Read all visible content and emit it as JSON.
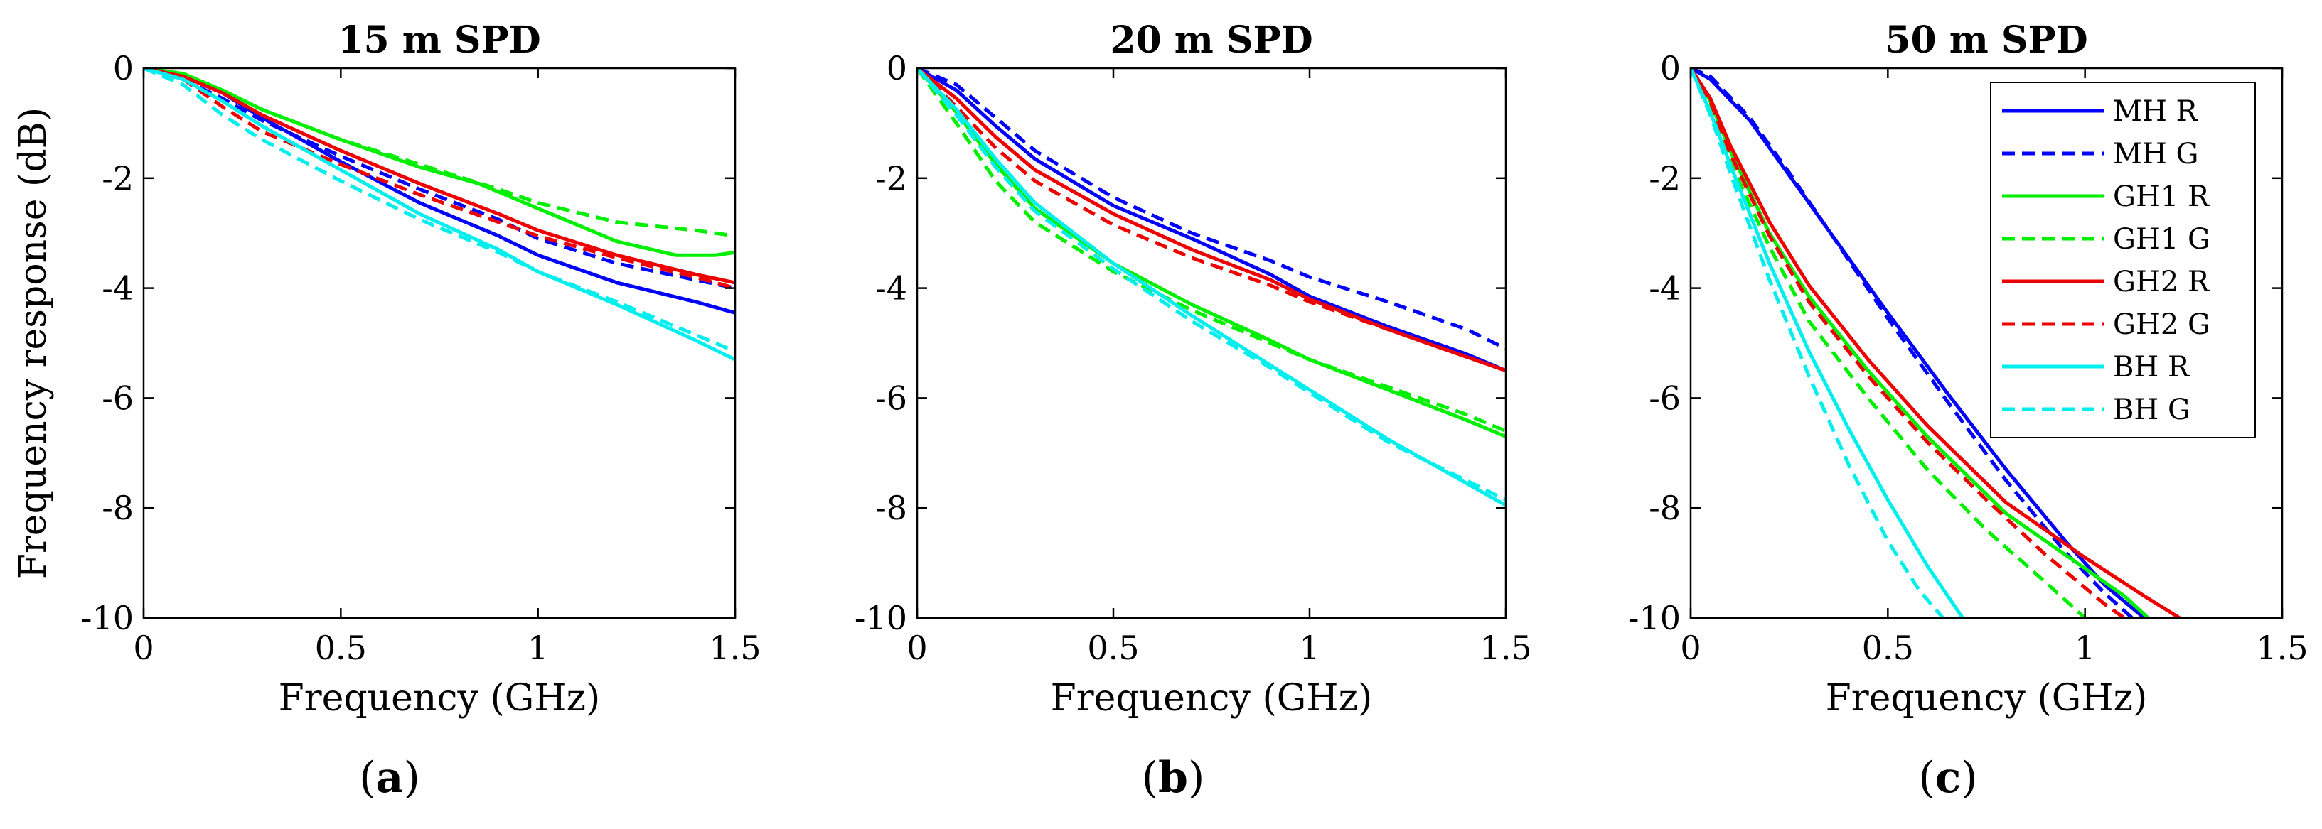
{
  "chart_data": [
    {
      "type": "line",
      "panel": "(a)",
      "panel_letter": "a",
      "title": "15 m SPD",
      "xlabel": "Frequency (GHz)",
      "ylabel": "Frequency response (dB)",
      "xlim": [
        0,
        1.5
      ],
      "ylim": [
        -10,
        0
      ],
      "xticks": [
        0,
        0.5,
        1,
        1.5
      ],
      "xtick_labels": [
        "0",
        "0.5",
        "1",
        "1.5"
      ],
      "yticks": [
        0,
        -2,
        -4,
        -6,
        -8,
        -10
      ],
      "ytick_labels": [
        "0",
        "-2",
        "-4",
        "-6",
        "-8",
        "-10"
      ],
      "series": [
        {
          "name": "MH R",
          "color": "#0000ff",
          "dash": "solid",
          "x": [
            0,
            0.1,
            0.2,
            0.3,
            0.5,
            0.7,
            0.9,
            1.0,
            1.2,
            1.4,
            1.5
          ],
          "y": [
            0,
            -0.15,
            -0.45,
            -0.9,
            -1.7,
            -2.45,
            -3.05,
            -3.4,
            -3.9,
            -4.25,
            -4.45
          ]
        },
        {
          "name": "MH G",
          "color": "#0000ff",
          "dash": "dashed",
          "x": [
            0,
            0.1,
            0.2,
            0.3,
            0.5,
            0.7,
            0.9,
            1.0,
            1.2,
            1.4,
            1.5
          ],
          "y": [
            0,
            -0.2,
            -0.55,
            -0.95,
            -1.6,
            -2.2,
            -2.75,
            -3.1,
            -3.55,
            -3.85,
            -4.0
          ]
        },
        {
          "name": "GH1 R",
          "color": "#00ee00",
          "dash": "solid",
          "x": [
            0,
            0.1,
            0.2,
            0.3,
            0.5,
            0.7,
            0.85,
            1.0,
            1.2,
            1.35,
            1.45,
            1.5
          ],
          "y": [
            0,
            -0.1,
            -0.4,
            -0.75,
            -1.3,
            -1.8,
            -2.1,
            -2.55,
            -3.15,
            -3.4,
            -3.4,
            -3.35
          ]
        },
        {
          "name": "GH1 G",
          "color": "#00ee00",
          "dash": "dashed",
          "x": [
            0,
            0.1,
            0.2,
            0.3,
            0.5,
            0.7,
            0.9,
            1.0,
            1.2,
            1.4,
            1.5
          ],
          "y": [
            0,
            -0.1,
            -0.4,
            -0.75,
            -1.3,
            -1.75,
            -2.2,
            -2.45,
            -2.8,
            -2.95,
            -3.05
          ]
        },
        {
          "name": "GH2 R",
          "color": "#ee0000",
          "dash": "solid",
          "x": [
            0,
            0.1,
            0.2,
            0.3,
            0.5,
            0.7,
            0.9,
            1.0,
            1.2,
            1.4,
            1.5
          ],
          "y": [
            0,
            -0.15,
            -0.45,
            -0.85,
            -1.5,
            -2.1,
            -2.65,
            -2.95,
            -3.4,
            -3.75,
            -3.9
          ]
        },
        {
          "name": "GH2 G",
          "color": "#ee0000",
          "dash": "dashed",
          "x": [
            0,
            0.1,
            0.2,
            0.3,
            0.5,
            0.7,
            0.9,
            1.0,
            1.2,
            1.4,
            1.5
          ],
          "y": [
            0,
            -0.2,
            -0.7,
            -1.15,
            -1.75,
            -2.3,
            -2.8,
            -3.05,
            -3.45,
            -3.8,
            -4.0
          ]
        },
        {
          "name": "BH R",
          "color": "#00eeee",
          "dash": "solid",
          "x": [
            0,
            0.1,
            0.2,
            0.3,
            0.5,
            0.7,
            0.9,
            1.0,
            1.2,
            1.4,
            1.5
          ],
          "y": [
            0,
            -0.2,
            -0.6,
            -1.05,
            -1.85,
            -2.65,
            -3.3,
            -3.7,
            -4.3,
            -4.95,
            -5.3
          ]
        },
        {
          "name": "BH G",
          "color": "#00eeee",
          "dash": "dashed",
          "x": [
            0,
            0.1,
            0.2,
            0.3,
            0.5,
            0.7,
            0.9,
            1.0,
            1.2,
            1.4,
            1.5
          ],
          "y": [
            0,
            -0.3,
            -0.85,
            -1.3,
            -2.05,
            -2.75,
            -3.35,
            -3.7,
            -4.25,
            -4.85,
            -5.15
          ]
        }
      ]
    },
    {
      "type": "line",
      "panel": "(b)",
      "panel_letter": "b",
      "title": "20 m SPD",
      "xlabel": "Frequency (GHz)",
      "ylabel": "",
      "xlim": [
        0,
        1.5
      ],
      "ylim": [
        -10,
        0
      ],
      "xticks": [
        0,
        0.5,
        1,
        1.5
      ],
      "xtick_labels": [
        "0",
        "0.5",
        "1",
        "1.5"
      ],
      "yticks": [
        0,
        -2,
        -4,
        -6,
        -8,
        -10
      ],
      "ytick_labels": [
        "0",
        "-2",
        "-4",
        "-6",
        "-8",
        "-10"
      ],
      "series": [
        {
          "name": "MH R",
          "color": "#0000ff",
          "dash": "solid",
          "x": [
            0,
            0.1,
            0.2,
            0.3,
            0.5,
            0.7,
            0.9,
            1.0,
            1.2,
            1.4,
            1.5
          ],
          "y": [
            0,
            -0.4,
            -1.05,
            -1.65,
            -2.5,
            -3.1,
            -3.75,
            -4.15,
            -4.7,
            -5.2,
            -5.5
          ]
        },
        {
          "name": "MH G",
          "color": "#0000ff",
          "dash": "dashed",
          "x": [
            0,
            0.1,
            0.2,
            0.3,
            0.5,
            0.7,
            0.9,
            1.0,
            1.2,
            1.4,
            1.5
          ],
          "y": [
            0,
            -0.3,
            -0.9,
            -1.5,
            -2.35,
            -3.0,
            -3.5,
            -3.8,
            -4.25,
            -4.75,
            -5.1
          ]
        },
        {
          "name": "GH1 R",
          "color": "#00ee00",
          "dash": "solid",
          "x": [
            0,
            0.1,
            0.2,
            0.3,
            0.5,
            0.7,
            0.9,
            1.0,
            1.2,
            1.4,
            1.5
          ],
          "y": [
            0,
            -0.8,
            -1.75,
            -2.55,
            -3.55,
            -4.3,
            -4.95,
            -5.3,
            -5.85,
            -6.4,
            -6.7
          ]
        },
        {
          "name": "GH1 G",
          "color": "#00ee00",
          "dash": "dashed",
          "x": [
            0,
            0.1,
            0.2,
            0.3,
            0.5,
            0.7,
            0.9,
            1.0,
            1.2,
            1.4,
            1.5
          ],
          "y": [
            0,
            -1.0,
            -2.05,
            -2.8,
            -3.7,
            -4.4,
            -5.0,
            -5.3,
            -5.8,
            -6.3,
            -6.6
          ]
        },
        {
          "name": "GH2 R",
          "color": "#ee0000",
          "dash": "solid",
          "x": [
            0,
            0.1,
            0.2,
            0.3,
            0.5,
            0.7,
            0.9,
            1.0,
            1.2,
            1.4,
            1.5
          ],
          "y": [
            0,
            -0.55,
            -1.25,
            -1.85,
            -2.65,
            -3.3,
            -3.85,
            -4.2,
            -4.75,
            -5.25,
            -5.5
          ]
        },
        {
          "name": "GH2 G",
          "color": "#ee0000",
          "dash": "dashed",
          "x": [
            0,
            0.1,
            0.2,
            0.3,
            0.5,
            0.7,
            0.9,
            1.0,
            1.2,
            1.4,
            1.5
          ],
          "y": [
            0,
            -0.7,
            -1.45,
            -2.05,
            -2.85,
            -3.45,
            -3.95,
            -4.25,
            -4.75,
            -5.25,
            -5.5
          ]
        },
        {
          "name": "BH R",
          "color": "#00eeee",
          "dash": "solid",
          "x": [
            0,
            0.1,
            0.2,
            0.3,
            0.5,
            0.7,
            0.9,
            1.0,
            1.2,
            1.4,
            1.5
          ],
          "y": [
            0,
            -0.75,
            -1.65,
            -2.45,
            -3.55,
            -4.5,
            -5.4,
            -5.85,
            -6.75,
            -7.55,
            -7.95
          ]
        },
        {
          "name": "BH G",
          "color": "#00eeee",
          "dash": "dashed",
          "x": [
            0,
            0.1,
            0.2,
            0.3,
            0.5,
            0.7,
            0.9,
            1.0,
            1.2,
            1.4,
            1.5
          ],
          "y": [
            0,
            -0.85,
            -1.8,
            -2.6,
            -3.65,
            -4.6,
            -5.45,
            -5.9,
            -6.8,
            -7.5,
            -7.85
          ]
        }
      ]
    },
    {
      "type": "line",
      "panel": "(c)",
      "panel_letter": "c",
      "title": "50 m SPD",
      "xlabel": "Frequency (GHz)",
      "ylabel": "",
      "xlim": [
        0,
        1.5
      ],
      "ylim": [
        -10,
        0
      ],
      "xticks": [
        0,
        0.5,
        1,
        1.5
      ],
      "xtick_labels": [
        "0",
        "0.5",
        "1",
        "1.5"
      ],
      "yticks": [
        0,
        -2,
        -4,
        -6,
        -8,
        -10
      ],
      "ytick_labels": [
        "0",
        "-2",
        "-4",
        "-6",
        "-8",
        "-10"
      ],
      "legend": {
        "placement": "top-right"
      },
      "series": [
        {
          "name": "MH R",
          "color": "#0000ff",
          "dash": "solid",
          "x": [
            0,
            0.05,
            0.15,
            0.25,
            0.35,
            0.5,
            0.65,
            0.8,
            0.95,
            1.05,
            1.15
          ],
          "y": [
            0,
            -0.2,
            -0.95,
            -1.95,
            -2.95,
            -4.45,
            -5.9,
            -7.3,
            -8.6,
            -9.4,
            -10
          ]
        },
        {
          "name": "MH G",
          "color": "#0000ff",
          "dash": "dashed",
          "x": [
            0,
            0.05,
            0.15,
            0.25,
            0.35,
            0.5,
            0.65,
            0.8,
            0.95,
            1.05,
            1.12
          ],
          "y": [
            0,
            -0.15,
            -0.9,
            -1.9,
            -2.95,
            -4.55,
            -6.05,
            -7.5,
            -8.8,
            -9.55,
            -10
          ]
        },
        {
          "name": "GH1 R",
          "color": "#00ee00",
          "dash": "solid",
          "x": [
            0,
            0.05,
            0.1,
            0.2,
            0.3,
            0.45,
            0.6,
            0.8,
            1.0,
            1.1,
            1.16
          ],
          "y": [
            0,
            -0.6,
            -1.5,
            -3.0,
            -4.15,
            -5.5,
            -6.7,
            -8.1,
            -9.1,
            -9.6,
            -10
          ]
        },
        {
          "name": "GH1 G",
          "color": "#00ee00",
          "dash": "dashed",
          "x": [
            0,
            0.05,
            0.1,
            0.2,
            0.3,
            0.45,
            0.6,
            0.75,
            0.9,
            1.0
          ],
          "y": [
            0,
            -0.7,
            -1.7,
            -3.25,
            -4.6,
            -6.0,
            -7.3,
            -8.4,
            -9.35,
            -10
          ]
        },
        {
          "name": "GH2 R",
          "color": "#ee0000",
          "dash": "solid",
          "x": [
            0,
            0.05,
            0.1,
            0.2,
            0.3,
            0.45,
            0.6,
            0.8,
            1.0,
            1.15,
            1.24
          ],
          "y": [
            0,
            -0.55,
            -1.4,
            -2.8,
            -3.95,
            -5.3,
            -6.5,
            -7.9,
            -8.9,
            -9.6,
            -10
          ]
        },
        {
          "name": "GH2 G",
          "color": "#ee0000",
          "dash": "dashed",
          "x": [
            0,
            0.05,
            0.1,
            0.2,
            0.3,
            0.45,
            0.6,
            0.75,
            0.9,
            1.05,
            1.1
          ],
          "y": [
            0,
            -0.6,
            -1.55,
            -3.05,
            -4.25,
            -5.6,
            -6.8,
            -7.85,
            -8.85,
            -9.75,
            -10
          ]
        },
        {
          "name": "BH R",
          "color": "#00eeee",
          "dash": "solid",
          "x": [
            0,
            0.05,
            0.1,
            0.2,
            0.3,
            0.4,
            0.5,
            0.6,
            0.69
          ],
          "y": [
            0,
            -0.8,
            -1.75,
            -3.55,
            -5.15,
            -6.55,
            -7.85,
            -9.05,
            -10
          ]
        },
        {
          "name": "BH G",
          "color": "#00eeee",
          "dash": "dashed",
          "x": [
            0,
            0.05,
            0.1,
            0.2,
            0.3,
            0.4,
            0.5,
            0.58,
            0.64
          ],
          "y": [
            0,
            -0.85,
            -1.9,
            -3.85,
            -5.6,
            -7.2,
            -8.6,
            -9.5,
            -10
          ]
        }
      ]
    }
  ]
}
